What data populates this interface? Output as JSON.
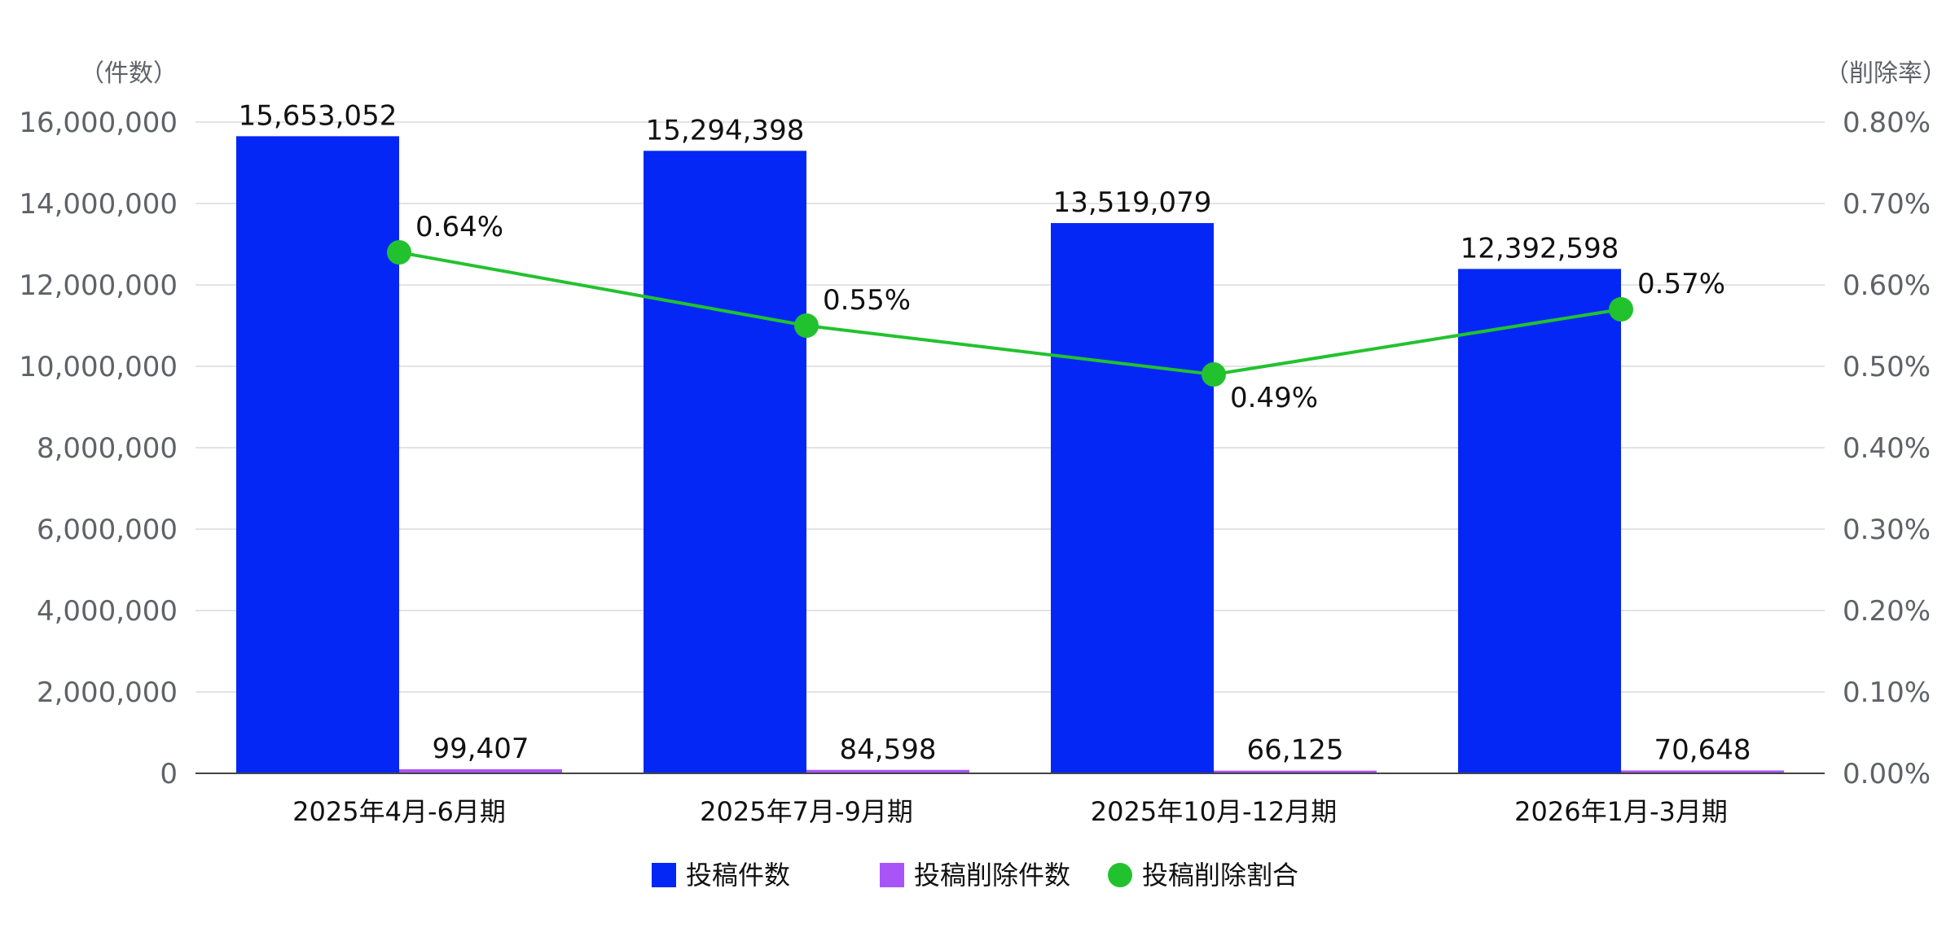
{
  "chart_data": {
    "type": "bar",
    "categories": [
      "2025年4月-6月期",
      "2025年7月-9月期",
      "2025年10月-12月期",
      "2026年1月-3月期"
    ],
    "series": [
      {
        "name": "投稿件数",
        "type": "bar",
        "axis": "left",
        "color": "#0527f5",
        "values": [
          15653052,
          15294398,
          13519079,
          12392598
        ],
        "labels": [
          "15,653,052",
          "15,294,398",
          "13,519,079",
          "12,392,598"
        ]
      },
      {
        "name": "投稿削除件数",
        "type": "bar",
        "axis": "left",
        "color": "#a855f7",
        "values": [
          99407,
          84598,
          66125,
          70648
        ],
        "labels": [
          "99,407",
          "84,598",
          "66,125",
          "70,648"
        ]
      },
      {
        "name": "投稿削除割合",
        "type": "line",
        "axis": "right",
        "color": "#22c22e",
        "values": [
          0.64,
          0.55,
          0.49,
          0.57
        ],
        "labels": [
          "0.64%",
          "0.55%",
          "0.49%",
          "0.57%"
        ]
      }
    ],
    "y_left": {
      "unit": "（件数）",
      "range": [
        0,
        16000000
      ],
      "ticks": [
        0,
        2000000,
        4000000,
        6000000,
        8000000,
        10000000,
        12000000,
        14000000,
        16000000
      ],
      "tick_labels": [
        "0",
        "2,000,000",
        "4,000,000",
        "6,000,000",
        "8,000,000",
        "10,000,000",
        "12,000,000",
        "14,000,000",
        "16,000,000"
      ]
    },
    "y_right": {
      "unit": "（削除率）",
      "range": [
        0,
        0.8
      ],
      "ticks": [
        0,
        0.1,
        0.2,
        0.3,
        0.4,
        0.5,
        0.6,
        0.7,
        0.8
      ],
      "tick_labels": [
        "0.00%",
        "0.10%",
        "0.20%",
        "0.30%",
        "0.40%",
        "0.50%",
        "0.60%",
        "0.70%",
        "0.80%"
      ]
    },
    "grid": true,
    "legend_position": "bottom"
  }
}
